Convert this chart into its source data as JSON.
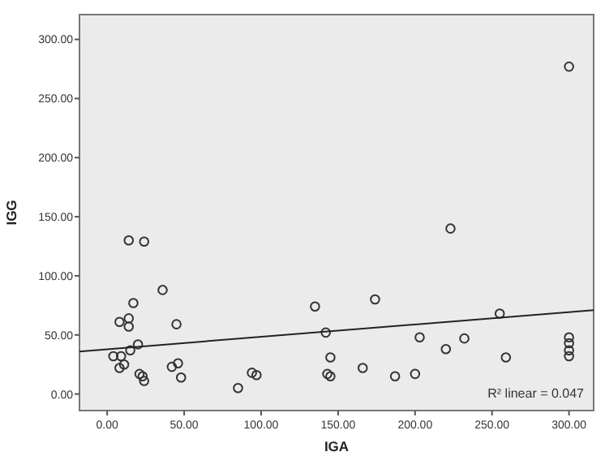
{
  "chart_data": {
    "type": "scatter",
    "xlabel": "IGA",
    "ylabel": "IGG",
    "xlim": [
      -18,
      316
    ],
    "ylim": [
      -14,
      321
    ],
    "xticks": [
      {
        "value": 0,
        "label": "0.00"
      },
      {
        "value": 50,
        "label": "50.00"
      },
      {
        "value": 100,
        "label": "100.00"
      },
      {
        "value": 150,
        "label": "150.00"
      },
      {
        "value": 200,
        "label": "200.00"
      },
      {
        "value": 250,
        "label": "250.00"
      },
      {
        "value": 300,
        "label": "300.00"
      }
    ],
    "yticks": [
      {
        "value": 0,
        "label": "0.00"
      },
      {
        "value": 50,
        "label": "50.00"
      },
      {
        "value": 100,
        "label": "100.00"
      },
      {
        "value": 150,
        "label": "150.00"
      },
      {
        "value": 200,
        "label": "200.00"
      },
      {
        "value": 250,
        "label": "250.00"
      },
      {
        "value": 300,
        "label": "300.00"
      }
    ],
    "grid": false,
    "series": [
      {
        "color": "#333333",
        "marker": "circle",
        "x": [
          14,
          24,
          36,
          17,
          8,
          14,
          14,
          45,
          20,
          15,
          4,
          9,
          11,
          8,
          21,
          23,
          24,
          42,
          46,
          48,
          85,
          94,
          97,
          135,
          142,
          145,
          143,
          145,
          223,
          174,
          255,
          203,
          232,
          220,
          259,
          166,
          187,
          200,
          300,
          300,
          300,
          300,
          300
        ],
        "values": [
          130,
          129,
          88,
          77,
          61,
          64,
          57,
          59,
          42,
          37,
          32,
          32,
          25,
          22,
          17,
          15,
          11,
          23,
          26,
          14,
          5,
          18,
          16,
          74,
          52,
          31,
          17,
          15,
          140,
          80,
          68,
          48,
          47,
          38,
          31,
          22,
          15,
          17,
          48,
          43,
          37,
          32,
          277
        ]
      },
      {
        "type": "line",
        "color": "#222222",
        "x": [
          -18,
          316
        ],
        "values": [
          36,
          71
        ]
      }
    ],
    "annotations": [
      "R² linear = 0.047"
    ]
  }
}
